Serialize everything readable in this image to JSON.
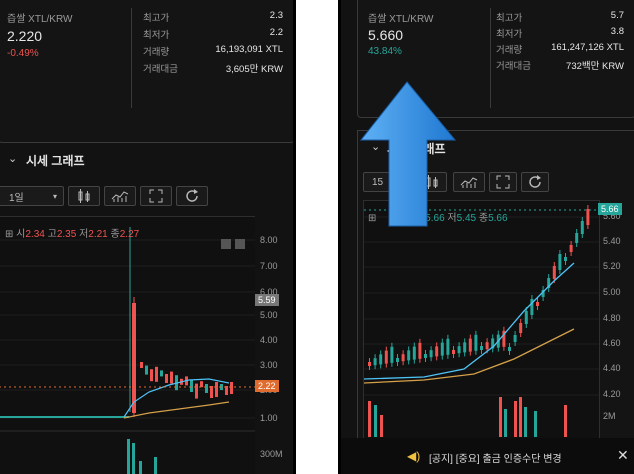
{
  "left": {
    "pair": "즙쌀 XTL/KRW",
    "price": "2.220",
    "change": "-0.49%",
    "stats": [
      {
        "label": "최고가",
        "value": "2.3"
      },
      {
        "label": "최저가",
        "value": "2.2"
      },
      {
        "label": "거래량",
        "value": "16,193,091 XTL"
      },
      {
        "label": "거래대금",
        "value": "3,605만 KRW"
      }
    ],
    "section_title": "시세 그래프",
    "interval": "1일",
    "ohlc": {
      "open_label": "시",
      "open": "2.34",
      "high_label": "고",
      "high": "2.35",
      "low_label": "저",
      "low": "2.21",
      "close_label": "종",
      "close": "2.27"
    },
    "axis": [
      "8.00",
      "7.00",
      "6.00",
      "5.00",
      "4.00",
      "3.00",
      "2.00",
      "1.00"
    ],
    "axis_marker_gray": "5.59",
    "axis_marker_current": "2.22",
    "volume_label": "300M"
  },
  "right": {
    "pair": "즙쌀 XTL/KRW",
    "price": "5.660",
    "change": "43.84%",
    "stats": [
      {
        "label": "최고가",
        "value": "5.7"
      },
      {
        "label": "최저가",
        "value": "3.8"
      },
      {
        "label": "거래량",
        "value": "161,247,126 XTL"
      },
      {
        "label": "거래대금",
        "value": "732백만 KRW"
      }
    ],
    "section_title": "시세 그래프",
    "interval": "15",
    "ohlc": {
      "open": "5.66",
      "low_label": "저",
      "low": "5.45",
      "close_label": "종",
      "close": "5.66"
    },
    "axis": [
      "5.60",
      "5.40",
      "5.20",
      "5.00",
      "4.80",
      "4.60",
      "4.40",
      "4.20"
    ],
    "axis_marker_current": "5.66",
    "volume_label": "2M",
    "notice": "[공지] [중요] 출금 인증수단 변경"
  },
  "colors": {
    "up": "#26a69a",
    "down": "#ef5350",
    "arrow": "#3b8fe0",
    "ma_short": "#4fc3f7",
    "ma_long": "#d4a04a"
  }
}
